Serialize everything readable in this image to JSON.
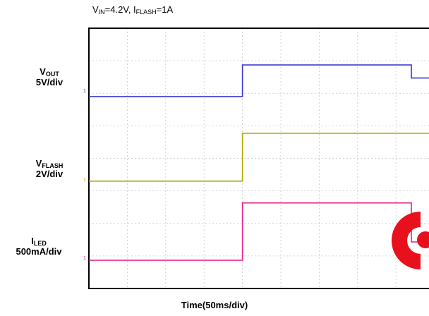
{
  "title": {
    "vin_sym": "V",
    "vin_sub": "IN",
    "vin_val": "=4.2V, ",
    "iflash_sym": "I",
    "iflash_sub": "FLASH",
    "iflash_val": "=1A"
  },
  "channels": [
    {
      "sym": "V",
      "sub": "OUT",
      "scale": "5V/div",
      "marker": "1",
      "color": "#3a3ad0"
    },
    {
      "sym": "V",
      "sub": "FLASH",
      "scale": "2V/div",
      "marker": "1",
      "color": "#b0a800"
    },
    {
      "sym": "I",
      "sub": "LED",
      "scale": "500mA/div",
      "marker": "1",
      "color": "#e0208a"
    }
  ],
  "xlabel": "Time(50ms/div)",
  "chart_data": {
    "type": "line",
    "x_unit": "ms",
    "xlim": [
      -100,
      150
    ],
    "ylim": [
      -4,
      4
    ],
    "grid": true,
    "series": [
      {
        "channel": "V_OUT",
        "color": "#3a3ad0",
        "x": [
          -100,
          0,
          0,
          110,
          110,
          150
        ],
        "y": [
          1.9,
          1.9,
          2.87,
          2.87,
          2.47,
          2.47
        ]
      },
      {
        "channel": "V_FLASH",
        "color": "#b0a800",
        "x": [
          -100,
          0,
          0,
          150
        ],
        "y": [
          -0.7,
          -0.7,
          0.77,
          0.77
        ]
      },
      {
        "channel": "I_LED",
        "color": "#e0208a",
        "x": [
          -100,
          0,
          0,
          110,
          110,
          150
        ],
        "y": [
          -3.13,
          -3.13,
          -1.37,
          -1.37,
          -2.57,
          -2.57
        ]
      }
    ]
  }
}
